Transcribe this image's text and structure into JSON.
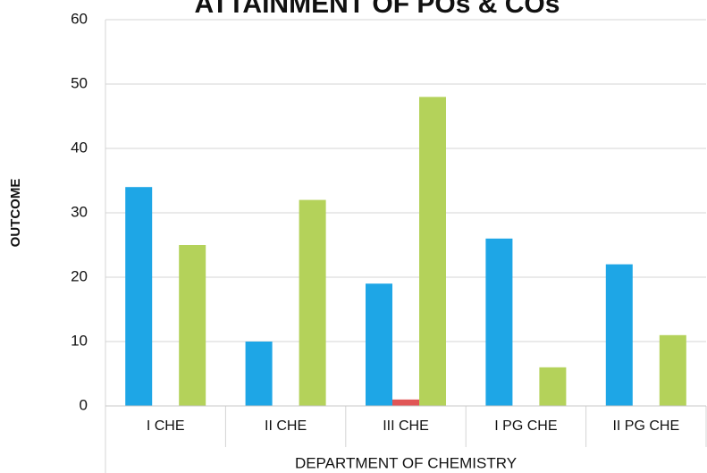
{
  "chart_data": {
    "type": "bar",
    "title": "ATTAINMENT OF POs & COs",
    "xlabel": "DEPARTMENT OF CHEMISTRY",
    "ylabel": "OUTCOME",
    "categories": [
      "I CHE",
      "II CHE",
      "III CHE",
      "I PG CHE",
      "II PG CHE"
    ],
    "series": [
      {
        "color": "#1ea6e6",
        "values": [
          34,
          10,
          19,
          26,
          22
        ]
      },
      {
        "color": "#e05656",
        "values": [
          0,
          0,
          1,
          0,
          0
        ]
      },
      {
        "color": "#b4d25a",
        "values": [
          25,
          32,
          48,
          6,
          11
        ]
      }
    ],
    "ylim": [
      0,
      60
    ],
    "yticks": [
      0,
      10,
      20,
      30,
      40,
      50,
      60
    ],
    "grid": true
  }
}
